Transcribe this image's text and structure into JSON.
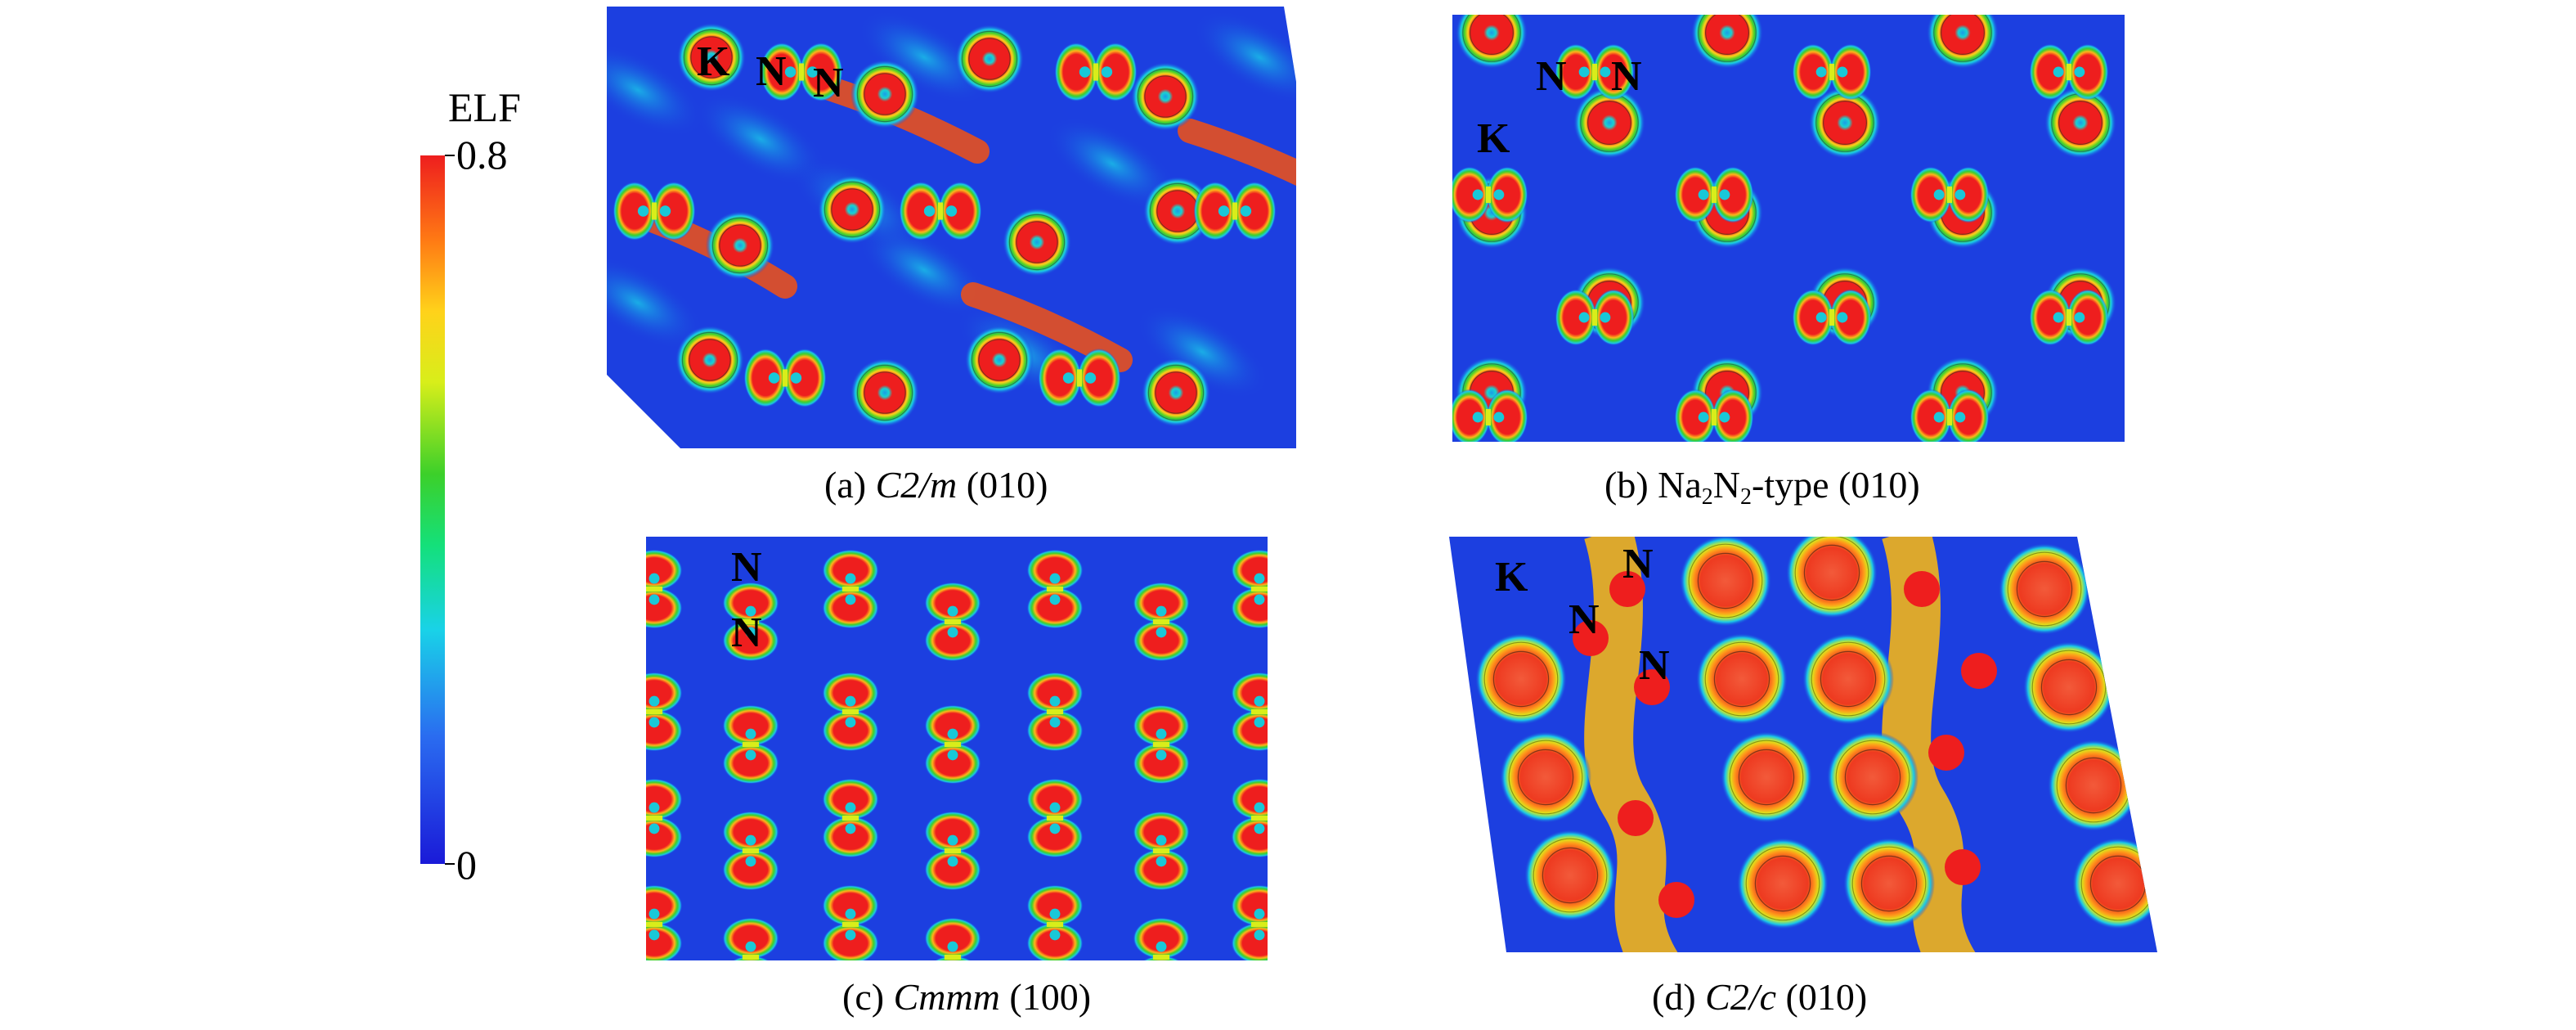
{
  "colorbar": {
    "title": "ELF",
    "max_label": "0.8",
    "min_label": "0",
    "range": [
      0,
      0.8
    ],
    "stops": [
      "#1a1ad8",
      "#2a6cf0",
      "#19d2e8",
      "#14e07a",
      "#3cd02a",
      "#d8ee1a",
      "#ffd21a",
      "#ff7a14",
      "#ee1e1e"
    ]
  },
  "panels": [
    {
      "id": "a",
      "caption_prefix": "(a) ",
      "caption_italic": "C2/m",
      "caption_suffix": " (010)",
      "atom_labels": [
        "K",
        "N",
        "N"
      ]
    },
    {
      "id": "b",
      "caption_prefix": "(b) Na",
      "sub1": "2",
      "mid": "N",
      "sub2": "2",
      "caption_suffix": "-type (010)",
      "atom_labels": [
        "N",
        "N",
        "K"
      ]
    },
    {
      "id": "c",
      "caption_prefix": "(c) ",
      "caption_italic": "Cmmm",
      "caption_suffix": " (100)",
      "atom_labels": [
        "N",
        "N"
      ]
    },
    {
      "id": "d",
      "caption_prefix": "(d) ",
      "caption_italic": "C2/c",
      "caption_suffix": " (010)",
      "atom_labels": [
        "K",
        "N",
        "N",
        "N"
      ]
    }
  ]
}
